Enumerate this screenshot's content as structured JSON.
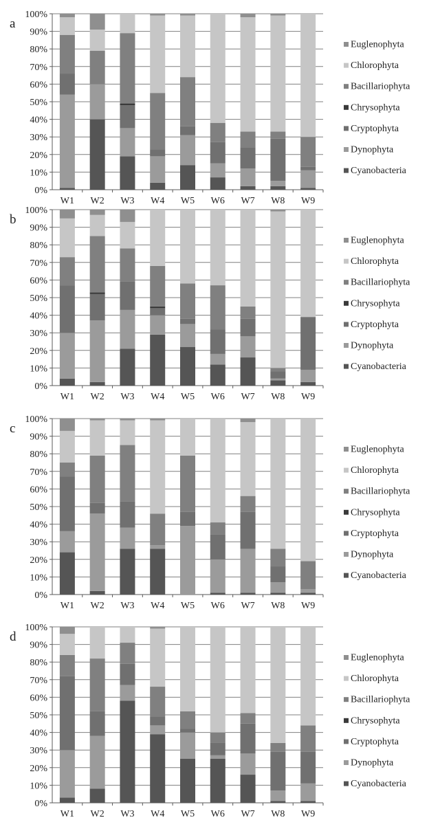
{
  "colors": {
    "Cyanobacteria": "#555555",
    "Dynophyta": "#9b9b9b",
    "Cryptophyta": "#707070",
    "Chrysophyta": "#3a3a3a",
    "Bacillariophyta": "#808080",
    "Chlorophyta": "#c6c6c6",
    "Euglenophyta": "#8f8f8f",
    "grid": "#7f7f7f",
    "axis": "#595959",
    "text": "#222222"
  },
  "chart_data": [
    {
      "type": "bar",
      "stacked": true,
      "panel_label": "a",
      "categories": [
        "W1",
        "W2",
        "W3",
        "W4",
        "W5",
        "W6",
        "W7",
        "W8",
        "W9"
      ],
      "ylim": [
        0,
        100
      ],
      "yticks": [
        "0%",
        "10%",
        "20%",
        "30%",
        "40%",
        "50%",
        "60%",
        "70%",
        "80%",
        "90%",
        "100%"
      ],
      "legend_order": [
        "Euglenophyta",
        "Chlorophyta",
        "Bacillariophyta",
        "Chrysophyta",
        "Cryptophyta",
        "Dynophyta",
        "Cyanobacteria"
      ],
      "legend_position": "right",
      "grid": true,
      "series": [
        {
          "name": "Cyanobacteria",
          "values": [
            1,
            40,
            19,
            4,
            14,
            7,
            2,
            2,
            1
          ]
        },
        {
          "name": "Dynophyta",
          "values": [
            53,
            20,
            16,
            15,
            17,
            8,
            10,
            3,
            10
          ]
        },
        {
          "name": "Cryptophyta",
          "values": [
            12,
            0,
            13,
            4,
            5,
            12,
            12,
            24,
            2
          ]
        },
        {
          "name": "Chrysophyta",
          "values": [
            0,
            0,
            1,
            0,
            0,
            0,
            0,
            0,
            0
          ]
        },
        {
          "name": "Bacillariophyta",
          "values": [
            22,
            19,
            40,
            32,
            28,
            11,
            9,
            4,
            17
          ]
        },
        {
          "name": "Chlorophyta",
          "values": [
            10,
            12,
            11,
            44,
            35,
            62,
            65,
            66,
            70
          ]
        },
        {
          "name": "Euglenophyta",
          "values": [
            2,
            9,
            0,
            1,
            1,
            0,
            2,
            1,
            0
          ]
        }
      ]
    },
    {
      "type": "bar",
      "stacked": true,
      "panel_label": "b",
      "categories": [
        "W1",
        "W2",
        "W3",
        "W4",
        "W5",
        "W6",
        "W7",
        "W8",
        "W9"
      ],
      "ylim": [
        0,
        100
      ],
      "yticks": [
        "0%",
        "10%",
        "20%",
        "30%",
        "40%",
        "50%",
        "60%",
        "70%",
        "80%",
        "90%",
        "100%"
      ],
      "legend_order": [
        "Euglenophyta",
        "Chlorophyta",
        "Bacillariophyta",
        "Chrysophyta",
        "Cryptophyta",
        "Dynophyta",
        "Cyanobacteria"
      ],
      "legend_position": "right",
      "grid": true,
      "series": [
        {
          "name": "Cyanobacteria",
          "values": [
            4,
            2,
            21,
            29,
            22,
            12,
            16,
            3,
            2
          ]
        },
        {
          "name": "Dynophyta",
          "values": [
            26,
            35,
            22,
            11,
            13,
            6,
            12,
            1,
            7
          ]
        },
        {
          "name": "Cryptophyta",
          "values": [
            27,
            15,
            16,
            4,
            3,
            14,
            10,
            4,
            30
          ]
        },
        {
          "name": "Chrysophyta",
          "values": [
            0,
            1,
            0,
            1,
            0,
            0,
            0,
            0,
            0
          ]
        },
        {
          "name": "Bacillariophyta",
          "values": [
            16,
            32,
            19,
            23,
            20,
            25,
            7,
            2,
            0
          ]
        },
        {
          "name": "Chlorophyta",
          "values": [
            22,
            12,
            15,
            32,
            42,
            43,
            55,
            89,
            61
          ]
        },
        {
          "name": "Euglenophyta",
          "values": [
            5,
            3,
            7,
            0,
            0,
            0,
            0,
            1,
            0
          ]
        }
      ]
    },
    {
      "type": "bar",
      "stacked": true,
      "panel_label": "c",
      "categories": [
        "W1",
        "W2",
        "W3",
        "W4",
        "W5",
        "W6",
        "W7",
        "W8",
        "W9"
      ],
      "ylim": [
        0,
        100
      ],
      "yticks": [
        "0%",
        "10%",
        "20%",
        "30%",
        "40%",
        "50%",
        "60%",
        "70%",
        "80%",
        "90%",
        "100%"
      ],
      "legend_order": [
        "Euglenophyta",
        "Chlorophyta",
        "Bacillariophyta",
        "Chrysophyta",
        "Cryptophyta",
        "Dynophyta",
        "Cyanobacteria"
      ],
      "legend_position": "right",
      "grid": true,
      "series": [
        {
          "name": "Cyanobacteria",
          "values": [
            24,
            2,
            26,
            26,
            0,
            1,
            1,
            1,
            1
          ]
        },
        {
          "name": "Dynophyta",
          "values": [
            12,
            44,
            12,
            2,
            39,
            19,
            25,
            6,
            2
          ]
        },
        {
          "name": "Cryptophyta",
          "values": [
            31,
            6,
            15,
            0,
            8,
            14,
            21,
            9,
            0
          ]
        },
        {
          "name": "Chrysophyta",
          "values": [
            0,
            0,
            0,
            0,
            0,
            0,
            0,
            0,
            0
          ]
        },
        {
          "name": "Bacillariophyta",
          "values": [
            8,
            27,
            32,
            18,
            32,
            7,
            9,
            10,
            16
          ]
        },
        {
          "name": "Chlorophyta",
          "values": [
            18,
            20,
            14,
            53,
            21,
            59,
            42,
            74,
            81
          ]
        },
        {
          "name": "Euglenophyta",
          "values": [
            7,
            1,
            1,
            1,
            0,
            0,
            2,
            0,
            0
          ]
        }
      ]
    },
    {
      "type": "bar",
      "stacked": true,
      "panel_label": "d",
      "categories": [
        "W1",
        "W2",
        "W3",
        "W4",
        "W5",
        "W6",
        "W7",
        "W8",
        "W9"
      ],
      "ylim": [
        0,
        100
      ],
      "yticks": [
        "0%",
        "10%",
        "20%",
        "30%",
        "40%",
        "50%",
        "60%",
        "70%",
        "80%",
        "90%",
        "100%"
      ],
      "legend_order": [
        "Euglenophyta",
        "Chlorophyta",
        "Bacillariophyta",
        "Chrysophyta",
        "Cryptophyta",
        "Dynophyta",
        "Cyanobacteria"
      ],
      "legend_position": "right",
      "grid": true,
      "series": [
        {
          "name": "Cyanobacteria",
          "values": [
            3,
            8,
            58,
            39,
            25,
            25,
            16,
            1,
            1
          ]
        },
        {
          "name": "Dynophyta",
          "values": [
            27,
            30,
            9,
            5,
            15,
            2,
            12,
            6,
            10
          ]
        },
        {
          "name": "Cryptophyta",
          "values": [
            42,
            14,
            12,
            5,
            2,
            7,
            17,
            22,
            18
          ]
        },
        {
          "name": "Chrysophyta",
          "values": [
            0,
            0,
            0,
            0,
            0,
            0,
            0,
            0,
            0
          ]
        },
        {
          "name": "Bacillariophyta",
          "values": [
            12,
            30,
            12,
            17,
            10,
            6,
            6,
            5,
            15
          ]
        },
        {
          "name": "Chlorophyta",
          "values": [
            12,
            18,
            9,
            33,
            48,
            60,
            49,
            66,
            56
          ]
        },
        {
          "name": "Euglenophyta",
          "values": [
            4,
            0,
            0,
            1,
            0,
            0,
            0,
            0,
            0
          ]
        }
      ]
    }
  ]
}
